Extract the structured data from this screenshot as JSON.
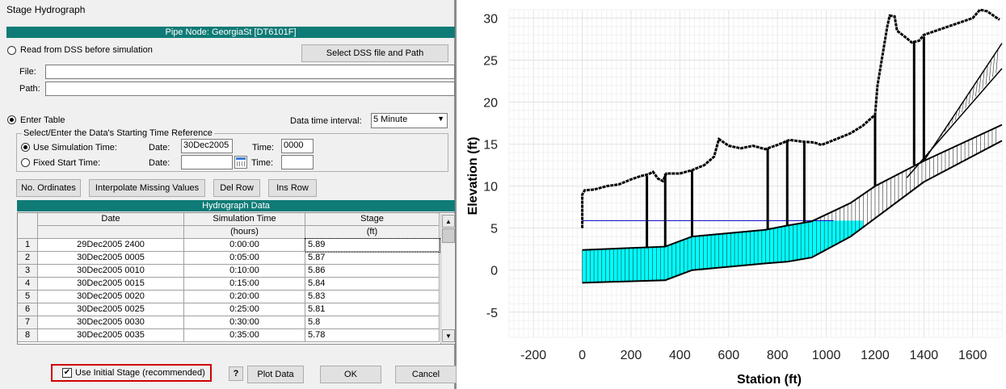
{
  "window": {
    "title": "Stage Hydrograph"
  },
  "pipe_node": "Pipe Node: GeorgiaSt [DT6101F]",
  "dss": {
    "radio_label": "Read from DSS before simulation",
    "select_button": "Select DSS file and Path",
    "file_label": "File:",
    "path_label": "Path:",
    "file_value": "",
    "path_value": ""
  },
  "enter_table": {
    "radio_label": "Enter Table",
    "interval_label": "Data time interval:",
    "interval_value": "5 Minute"
  },
  "time_ref": {
    "group_label": "Select/Enter the Data's Starting Time Reference",
    "use_sim_label": "Use Simulation Time:",
    "fixed_label": "Fixed Start Time:",
    "date_label": "Date:",
    "time_label": "Time:",
    "sim_date": "30Dec2005",
    "sim_time": "0000",
    "fixed_date": "",
    "fixed_time": ""
  },
  "toolbar": {
    "no_ordinates": "No. Ordinates",
    "interpolate": "Interpolate Missing Values",
    "del_row": "Del Row",
    "ins_row": "Ins Row"
  },
  "table": {
    "title": "Hydrograph Data",
    "columns": [
      "Date",
      "Simulation Time",
      "Stage"
    ],
    "units": [
      "",
      "(hours)",
      "(ft)"
    ],
    "rows": [
      {
        "n": "1",
        "date": "29Dec2005 2400",
        "time": "0:00:00",
        "stage": "5.89"
      },
      {
        "n": "2",
        "date": "30Dec2005 0005",
        "time": "0:05:00",
        "stage": "5.87"
      },
      {
        "n": "3",
        "date": "30Dec2005 0010",
        "time": "0:10:00",
        "stage": "5.86"
      },
      {
        "n": "4",
        "date": "30Dec2005 0015",
        "time": "0:15:00",
        "stage": "5.84"
      },
      {
        "n": "5",
        "date": "30Dec2005 0020",
        "time": "0:20:00",
        "stage": "5.83"
      },
      {
        "n": "6",
        "date": "30Dec2005 0025",
        "time": "0:25:00",
        "stage": "5.81"
      },
      {
        "n": "7",
        "date": "30Dec2005 0030",
        "time": "0:30:00",
        "stage": "5.8"
      },
      {
        "n": "8",
        "date": "30Dec2005 0035",
        "time": "0:35:00",
        "stage": "5.78"
      }
    ]
  },
  "bottom": {
    "initial_stage": "Use Initial Stage (recommended)",
    "help": "?",
    "plot_data": "Plot Data",
    "ok": "OK",
    "cancel": "Cancel"
  },
  "colors": {
    "teal_bar": "#0f7b76",
    "highlight_box": "#d00000",
    "water_fill": "#00ffff",
    "water_line": "#0000cc"
  },
  "chart_data": {
    "type": "line",
    "title": "",
    "xlabel": "Station (ft)",
    "ylabel": "Elevation (ft)",
    "xlim": [
      -300,
      1720
    ],
    "ylim": [
      -8,
      31
    ],
    "x_ticks": [
      -200,
      0,
      200,
      400,
      600,
      800,
      1000,
      1200,
      1400,
      1600
    ],
    "y_ticks": [
      -5,
      0,
      5,
      10,
      15,
      20,
      25,
      30
    ],
    "grid": true,
    "series": [
      {
        "role": "ground-surface",
        "points": [
          [
            0,
            5
          ],
          [
            0,
            9
          ],
          [
            10,
            9.5
          ],
          [
            50,
            9.6
          ],
          [
            100,
            10
          ],
          [
            150,
            10.2
          ],
          [
            200,
            10.8
          ],
          [
            240,
            11.2
          ],
          [
            270,
            11.4
          ],
          [
            290,
            11.7
          ],
          [
            310,
            10.9
          ],
          [
            330,
            10.6
          ],
          [
            345,
            11.5
          ],
          [
            400,
            11.5
          ],
          [
            450,
            11.9
          ],
          [
            500,
            12.5
          ],
          [
            540,
            13.5
          ],
          [
            560,
            15.6
          ],
          [
            600,
            14.8
          ],
          [
            650,
            14.5
          ],
          [
            700,
            14.8
          ],
          [
            750,
            14.4
          ],
          [
            800,
            14.9
          ],
          [
            850,
            15.5
          ],
          [
            900,
            15.3
          ],
          [
            950,
            15.2
          ],
          [
            980,
            14.9
          ],
          [
            1050,
            15.7
          ],
          [
            1100,
            16.3
          ],
          [
            1150,
            17.2
          ],
          [
            1200,
            18.5
          ],
          [
            1210,
            22
          ],
          [
            1250,
            29
          ],
          [
            1260,
            30.3
          ],
          [
            1280,
            30.2
          ],
          [
            1290,
            28.5
          ],
          [
            1330,
            27.6
          ],
          [
            1350,
            27.1
          ],
          [
            1380,
            27.3
          ],
          [
            1400,
            28
          ],
          [
            1450,
            28.5
          ],
          [
            1500,
            29
          ],
          [
            1550,
            29.5
          ],
          [
            1600,
            30
          ],
          [
            1630,
            31
          ],
          [
            1660,
            30.8
          ],
          [
            1690,
            30.2
          ],
          [
            1710,
            29.8
          ]
        ]
      },
      {
        "role": "pipe-crown",
        "points": [
          [
            0,
            2.4
          ],
          [
            340,
            2.8
          ],
          [
            450,
            4
          ],
          [
            750,
            4.8
          ],
          [
            840,
            5.3
          ],
          [
            940,
            5.8
          ],
          [
            1100,
            8
          ],
          [
            1200,
            10
          ],
          [
            1400,
            13
          ],
          [
            1720,
            17.3
          ]
        ]
      },
      {
        "role": "pipe-invert",
        "points": [
          [
            0,
            -1.5
          ],
          [
            340,
            -1.2
          ],
          [
            450,
            0
          ],
          [
            750,
            0.8
          ],
          [
            840,
            1
          ],
          [
            940,
            1.5
          ],
          [
            1100,
            4
          ],
          [
            1400,
            10.5
          ],
          [
            1720,
            15.4
          ]
        ]
      },
      {
        "role": "water-surface",
        "points": [
          [
            0,
            5.89
          ],
          [
            1030,
            5.89
          ]
        ]
      }
    ],
    "structure_lines": [
      {
        "x": 265,
        "top": 11.2,
        "bottom": 2.6
      },
      {
        "x": 340,
        "top": 11.5,
        "bottom": 2.8
      },
      {
        "x": 450,
        "top": 11.9,
        "bottom": 4
      },
      {
        "x": 760,
        "top": 14.5,
        "bottom": 4.8
      },
      {
        "x": 840,
        "top": 15.5,
        "bottom": 5.3
      },
      {
        "x": 910,
        "top": 15.3,
        "bottom": 5.6
      },
      {
        "x": 1200,
        "top": 18.5,
        "bottom": 10
      },
      {
        "x": 1360,
        "top": 27.3,
        "bottom": 12.5
      },
      {
        "x": 1400,
        "top": 27.8,
        "bottom": 13
      }
    ],
    "steep_pipe": {
      "crown": [
        [
          1400,
          13
        ],
        [
          1720,
          27
        ]
      ],
      "invert": [
        [
          1330,
          11
        ],
        [
          1720,
          24
        ]
      ]
    }
  }
}
